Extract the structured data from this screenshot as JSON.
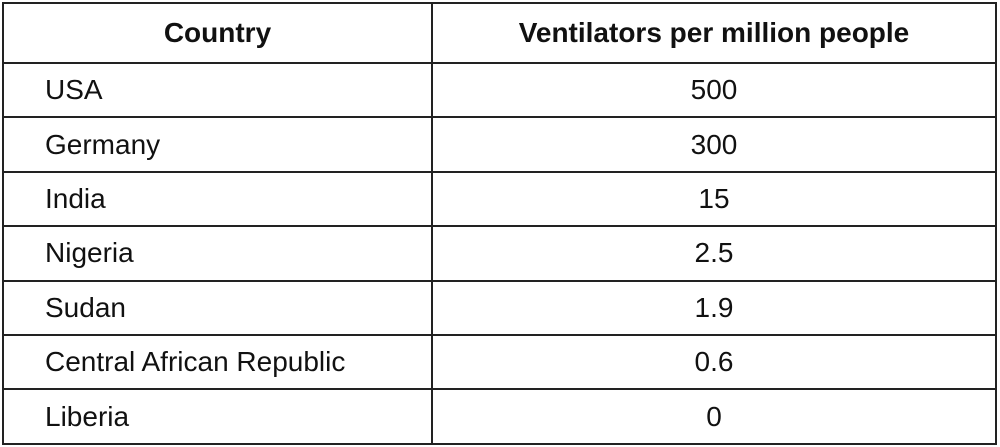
{
  "table": {
    "header": [
      "Country",
      "Ventilators per million people"
    ],
    "rows": [
      [
        "USA",
        500
      ],
      [
        "Germany",
        300
      ],
      [
        "India",
        15
      ],
      [
        "Nigeria",
        2.5
      ],
      [
        "Sudan",
        1.9
      ],
      [
        "Central African Republic",
        0.6
      ],
      [
        "Liberia",
        0
      ]
    ]
  }
}
